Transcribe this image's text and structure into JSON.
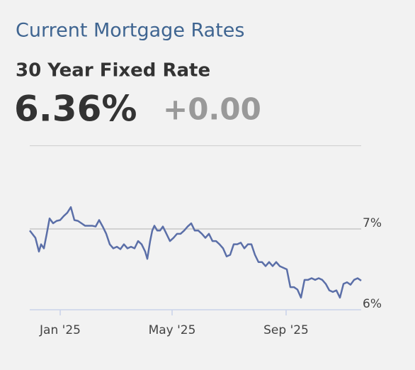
{
  "header": {
    "title": "Current Mortgage Rates",
    "subtitle": "30 Year Fixed Rate",
    "rate": "6.36%",
    "change": "+0.00"
  },
  "chart_data": {
    "type": "line",
    "x": [
      0,
      8,
      13,
      16,
      20,
      24,
      28,
      33,
      38,
      43,
      48,
      53,
      58,
      63,
      68,
      73,
      78,
      83,
      88,
      93,
      98,
      103,
      108,
      113,
      118,
      123,
      128,
      133,
      138,
      143,
      148,
      153,
      158,
      163,
      166,
      170,
      173,
      176,
      180,
      184,
      188,
      193,
      198,
      203,
      208,
      213,
      218,
      223,
      228,
      233,
      238,
      243,
      248,
      253,
      258,
      263,
      268,
      273,
      278,
      283,
      288,
      293,
      298,
      303,
      308,
      313,
      318,
      323,
      328,
      333,
      338,
      343,
      348,
      353,
      358,
      363,
      368,
      373,
      378,
      383,
      388,
      393,
      398,
      403,
      408,
      413,
      418,
      423,
      428,
      433,
      438,
      443,
      448,
      453,
      458,
      463,
      468
    ],
    "series": [
      {
        "name": "30 Year Fixed Rate",
        "color": "#5b6fa8",
        "values": [
          6.98,
          6.89,
          6.72,
          6.81,
          6.76,
          6.94,
          7.13,
          7.07,
          7.1,
          7.11,
          7.16,
          7.2,
          7.27,
          7.11,
          7.1,
          7.07,
          7.04,
          7.04,
          7.04,
          7.03,
          7.11,
          7.03,
          6.94,
          6.81,
          6.76,
          6.78,
          6.75,
          6.81,
          6.76,
          6.78,
          6.76,
          6.85,
          6.81,
          6.72,
          6.63,
          6.85,
          6.98,
          7.04,
          6.98,
          6.98,
          7.03,
          6.94,
          6.85,
          6.89,
          6.94,
          6.94,
          6.98,
          7.03,
          7.07,
          6.98,
          6.98,
          6.94,
          6.89,
          6.94,
          6.85,
          6.85,
          6.81,
          6.76,
          6.66,
          6.68,
          6.81,
          6.81,
          6.83,
          6.76,
          6.81,
          6.81,
          6.68,
          6.59,
          6.59,
          6.54,
          6.59,
          6.54,
          6.59,
          6.54,
          6.52,
          6.5,
          6.28,
          6.28,
          6.25,
          6.15,
          6.37,
          6.37,
          6.39,
          6.37,
          6.39,
          6.37,
          6.32,
          6.24,
          6.22,
          6.24,
          6.15,
          6.32,
          6.34,
          6.31,
          6.37,
          6.39,
          6.36
        ]
      }
    ],
    "xlim": [
      0,
      468
    ],
    "xticks": [
      {
        "value": 43,
        "label": "Jan '25"
      },
      {
        "value": 201,
        "label": "May '25"
      },
      {
        "value": 362,
        "label": "Sep '25"
      }
    ],
    "ylim": [
      6,
      8.03
    ],
    "yticks": [
      {
        "value": 6,
        "label": "6%"
      },
      {
        "value": 7,
        "label": "7%"
      }
    ],
    "grid": true
  }
}
